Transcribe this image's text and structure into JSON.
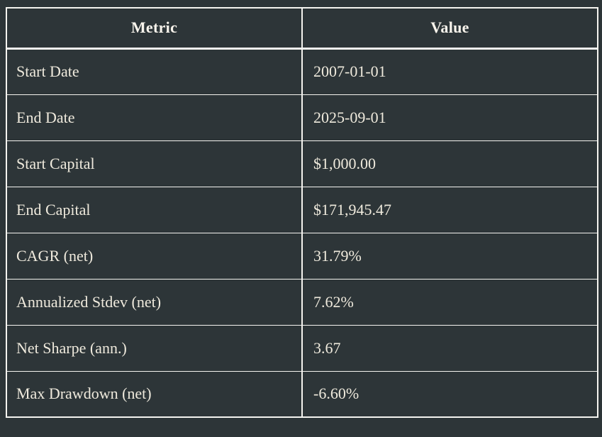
{
  "colors": {
    "background": "#2d3538",
    "border": "#f5f4f0",
    "text": "#efeadd",
    "header_text": "#f8f4ec"
  },
  "table": {
    "columns": [
      "Metric",
      "Value"
    ],
    "rows": [
      {
        "metric": "Start Date",
        "value": "2007-01-01"
      },
      {
        "metric": "End Date",
        "value": "2025-09-01"
      },
      {
        "metric": "Start Capital",
        "value": "$1,000.00"
      },
      {
        "metric": "End Capital",
        "value": "$171,945.47"
      },
      {
        "metric": "CAGR (net)",
        "value": "31.79%"
      },
      {
        "metric": "Annualized Stdev (net)",
        "value": "7.62%"
      },
      {
        "metric": "Net Sharpe (ann.)",
        "value": "3.67"
      },
      {
        "metric": "Max Drawdown (net)",
        "value": "-6.60%"
      }
    ]
  },
  "chart_data": {
    "type": "table",
    "title": "",
    "columns": [
      "Metric",
      "Value"
    ],
    "rows": [
      [
        "Start Date",
        "2007-01-01"
      ],
      [
        "End Date",
        "2025-09-01"
      ],
      [
        "Start Capital",
        "$1,000.00"
      ],
      [
        "End Capital",
        "$171,945.47"
      ],
      [
        "CAGR (net)",
        "31.79%"
      ],
      [
        "Annualized Stdev (net)",
        "7.62%"
      ],
      [
        "Net Sharpe (ann.)",
        "3.67"
      ],
      [
        "Max Drawdown (net)",
        "-6.60%"
      ]
    ]
  }
}
